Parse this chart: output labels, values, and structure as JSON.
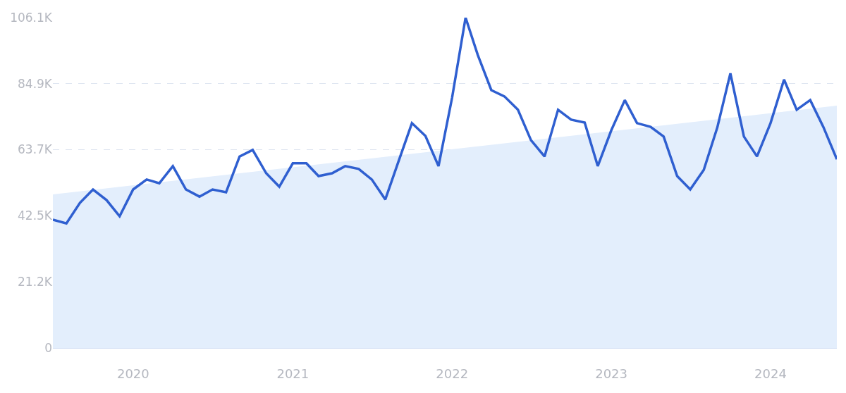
{
  "chart_data": {
    "type": "line",
    "x": [
      "2019-07",
      "2019-08",
      "2019-09",
      "2019-10",
      "2019-11",
      "2019-12",
      "2020-01",
      "2020-02",
      "2020-03",
      "2020-04",
      "2020-05",
      "2020-06",
      "2020-07",
      "2020-08",
      "2020-09",
      "2020-10",
      "2020-11",
      "2020-12",
      "2021-01",
      "2021-02",
      "2021-03",
      "2021-04",
      "2021-05",
      "2021-06",
      "2021-07",
      "2021-08",
      "2021-09",
      "2021-10",
      "2021-11",
      "2021-12",
      "2022-01",
      "2022-02",
      "2022-03",
      "2022-04",
      "2022-05",
      "2022-06",
      "2022-07",
      "2022-08",
      "2022-09",
      "2022-10",
      "2022-11",
      "2022-12",
      "2023-01",
      "2023-02",
      "2023-03",
      "2023-04",
      "2023-05",
      "2023-06",
      "2023-07",
      "2023-08",
      "2023-09",
      "2023-10",
      "2023-11",
      "2023-12",
      "2024-01",
      "2024-02",
      "2024-03",
      "2024-04",
      "2024-05",
      "2024-06"
    ],
    "series": [
      {
        "type": "area",
        "color": "#e3eefc",
        "x": [
          "2019-07",
          "2024-06"
        ],
        "values": [
          49300,
          77800
        ]
      },
      {
        "color": "#2f5fd0",
        "values": [
          41200,
          40000,
          46600,
          50900,
          47500,
          42300,
          50900,
          54100,
          52900,
          58400,
          50900,
          48600,
          50900,
          50000,
          61500,
          63600,
          56100,
          51800,
          59300,
          59300,
          55200,
          56100,
          58400,
          57500,
          54100,
          47700,
          60200,
          72200,
          68100,
          58400,
          80300,
          106100,
          94100,
          82800,
          80800,
          76500,
          66700,
          61500,
          76500,
          73300,
          72400,
          58400,
          69900,
          79600,
          72200,
          71000,
          67900,
          55200,
          50900,
          57200,
          70800,
          88200,
          67900,
          61500,
          72200,
          86200,
          76500,
          79600,
          71000,
          60600
        ]
      }
    ],
    "xlim": [
      "2019-07",
      "2024-06"
    ],
    "xticks": [
      {
        "value": "2020-01",
        "label": "2020"
      },
      {
        "value": "2021-01",
        "label": "2021"
      },
      {
        "value": "2022-01",
        "label": "2022"
      },
      {
        "value": "2023-01",
        "label": "2023"
      },
      {
        "value": "2024-01",
        "label": "2024"
      }
    ],
    "ylim": [
      0,
      106100
    ],
    "yticks": [
      0,
      {
        "value": 21200,
        "label": "21.2K"
      },
      {
        "value": 42500,
        "label": "42.5K"
      },
      {
        "value": 63700,
        "label": "63.7K"
      },
      {
        "value": 84900,
        "label": "84.9K"
      },
      {
        "value": 106100,
        "label": "106.1K"
      }
    ],
    "grid": "y",
    "marker": "none",
    "line_style": "solid"
  }
}
